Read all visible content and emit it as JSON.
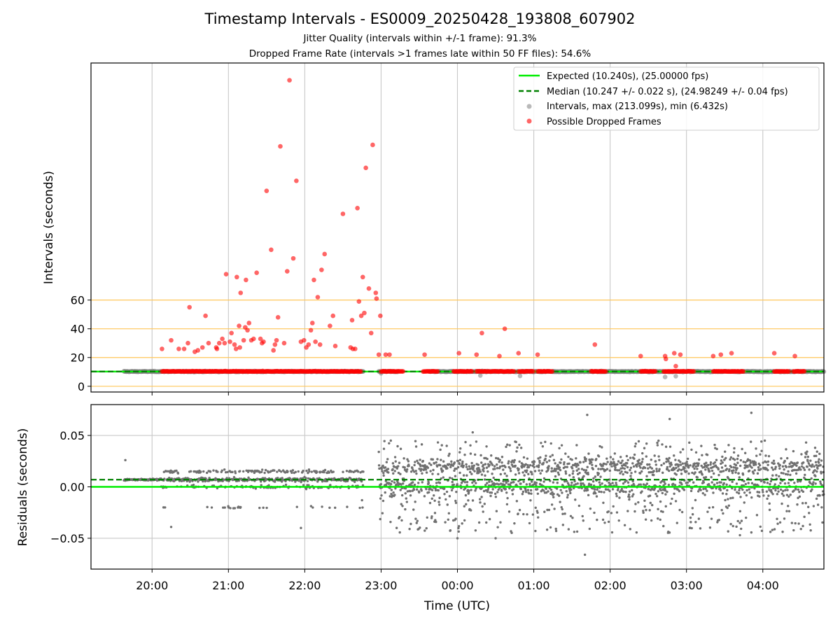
{
  "figure": {
    "title": "Timestamp Intervals - ES0009_20250428_193808_607902",
    "subtitle1": "Jitter Quality (intervals within +/-1 frame): 91.3%",
    "subtitle2": "Dropped Frame Rate (intervals >1 frames late within 50 FF files): 54.6%"
  },
  "chart_data": [
    {
      "type": "scatter",
      "ylabel": "Intervals (seconds)",
      "xlabel": "",
      "yticks": [
        0,
        20,
        40,
        60
      ],
      "ylim": [
        -4,
        225
      ],
      "xticks": [
        "20:00",
        "21:00",
        "22:00",
        "23:00",
        "00:00",
        "01:00",
        "02:00",
        "03:00",
        "04:00"
      ],
      "xlim_hours": [
        19.2,
        28.8
      ],
      "grid": "x only (gray), plus orange horizontal lines at 0, 20, 40, 60",
      "legend_position": "upper right",
      "colors": {
        "expected": "#00ee00",
        "median": "#008000",
        "intervals": "#808080",
        "dropped": "#ff0000",
        "hlines": "#ffc658"
      },
      "legend": [
        "Expected (10.240s), (25.00000 fps)",
        "Median (10.247 +/- 0.022 s), (24.98249 +/- 0.04 fps)",
        "Intervals, max (213.099s), min (6.432s)",
        "Possible Dropped Frames"
      ],
      "expected_interval": 10.24,
      "median_interval": 10.247,
      "hline_levels": [
        0,
        20,
        40,
        60
      ],
      "interval_segments_hours": [
        [
          19.63,
          22.77
        ],
        [
          22.97,
          23.22
        ],
        [
          23.63,
          28.8
        ]
      ],
      "dropped_band_segments_hours": [
        [
          20.13,
          22.74
        ],
        [
          23.0,
          23.3
        ],
        [
          23.55,
          23.75
        ],
        [
          23.95,
          24.2
        ],
        [
          24.25,
          24.75
        ],
        [
          24.8,
          25.0
        ],
        [
          25.05,
          25.25
        ],
        [
          25.75,
          25.95
        ],
        [
          26.4,
          26.6
        ],
        [
          26.7,
          27.1
        ],
        [
          27.35,
          27.75
        ],
        [
          28.15,
          28.35
        ],
        [
          28.4,
          28.55
        ]
      ],
      "dropped_points": [
        [
          20.13,
          26
        ],
        [
          20.25,
          32
        ],
        [
          20.35,
          26
        ],
        [
          20.42,
          26
        ],
        [
          20.47,
          30
        ],
        [
          20.49,
          55
        ],
        [
          20.56,
          24
        ],
        [
          20.6,
          25
        ],
        [
          20.66,
          27
        ],
        [
          20.7,
          49
        ],
        [
          20.74,
          30
        ],
        [
          20.84,
          27
        ],
        [
          20.85,
          26
        ],
        [
          20.88,
          30
        ],
        [
          20.92,
          33
        ],
        [
          20.95,
          30
        ],
        [
          20.97,
          78
        ],
        [
          21.02,
          31
        ],
        [
          21.04,
          37
        ],
        [
          21.08,
          29
        ],
        [
          21.1,
          26
        ],
        [
          21.11,
          76
        ],
        [
          21.14,
          42
        ],
        [
          21.15,
          27
        ],
        [
          21.16,
          65
        ],
        [
          21.2,
          32
        ],
        [
          21.22,
          41
        ],
        [
          21.23,
          74
        ],
        [
          21.25,
          39
        ],
        [
          21.27,
          44
        ],
        [
          21.3,
          32
        ],
        [
          21.33,
          33
        ],
        [
          21.37,
          79
        ],
        [
          21.42,
          33
        ],
        [
          21.44,
          30
        ],
        [
          21.46,
          31
        ],
        [
          21.5,
          136
        ],
        [
          21.56,
          95
        ],
        [
          21.59,
          25
        ],
        [
          21.61,
          29
        ],
        [
          21.63,
          32
        ],
        [
          21.65,
          48
        ],
        [
          21.68,
          167
        ],
        [
          21.73,
          30
        ],
        [
          21.77,
          80
        ],
        [
          21.8,
          213
        ],
        [
          21.85,
          89
        ],
        [
          21.89,
          143
        ],
        [
          21.95,
          31
        ],
        [
          21.99,
          32
        ],
        [
          22.02,
          27
        ],
        [
          22.05,
          29
        ],
        [
          22.08,
          39
        ],
        [
          22.1,
          44
        ],
        [
          22.12,
          74
        ],
        [
          22.14,
          31
        ],
        [
          22.17,
          62
        ],
        [
          22.2,
          29
        ],
        [
          22.22,
          81
        ],
        [
          22.26,
          92
        ],
        [
          22.33,
          42
        ],
        [
          22.37,
          49
        ],
        [
          22.4,
          28
        ],
        [
          22.5,
          120
        ],
        [
          22.6,
          27
        ],
        [
          22.62,
          46
        ],
        [
          22.63,
          26
        ],
        [
          22.66,
          26
        ],
        [
          22.69,
          124
        ],
        [
          22.71,
          59
        ],
        [
          22.74,
          49
        ],
        [
          22.76,
          76
        ],
        [
          22.78,
          51
        ],
        [
          22.8,
          152
        ],
        [
          22.84,
          68
        ],
        [
          22.87,
          37
        ],
        [
          22.89,
          168
        ],
        [
          22.93,
          65
        ],
        [
          22.94,
          61
        ],
        [
          22.97,
          22
        ],
        [
          22.99,
          49
        ],
        [
          23.06,
          22
        ],
        [
          23.11,
          22
        ],
        [
          23.57,
          22
        ],
        [
          24.02,
          23
        ],
        [
          24.25,
          22
        ],
        [
          24.32,
          37
        ],
        [
          24.55,
          21
        ],
        [
          24.62,
          40
        ],
        [
          24.8,
          23
        ],
        [
          25.05,
          22
        ],
        [
          25.8,
          29
        ],
        [
          26.4,
          21
        ],
        [
          26.72,
          21
        ],
        [
          26.73,
          19
        ],
        [
          26.84,
          23
        ],
        [
          26.86,
          14
        ],
        [
          26.92,
          22
        ],
        [
          27.35,
          21
        ],
        [
          27.45,
          22
        ],
        [
          27.59,
          23
        ],
        [
          28.15,
          23
        ],
        [
          28.42,
          21
        ]
      ]
    },
    {
      "type": "scatter",
      "xlabel": "Time (UTC)",
      "ylabel": "Residuals (seconds)",
      "ylim": [
        -0.08,
        0.08
      ],
      "yticks": [
        0.05,
        0.0,
        -0.05
      ],
      "ytick_labels": [
        "0.05",
        "0.00",
        "−0.05"
      ],
      "xticks": [
        "20:00",
        "21:00",
        "22:00",
        "23:00",
        "00:00",
        "01:00",
        "02:00",
        "03:00",
        "04:00"
      ],
      "xlim_hours": [
        19.2,
        28.8
      ],
      "grid": "both (gray)",
      "expected_residual": 0.0,
      "median_residual": 0.007,
      "scatter_regimes": [
        {
          "x_range_hours": [
            19.63,
            22.77
          ],
          "y_min": -0.04,
          "y_max": 0.026
        },
        {
          "x_range_hours": [
            22.97,
            28.8
          ],
          "y_min": -0.066,
          "y_max": 0.07
        }
      ]
    }
  ]
}
